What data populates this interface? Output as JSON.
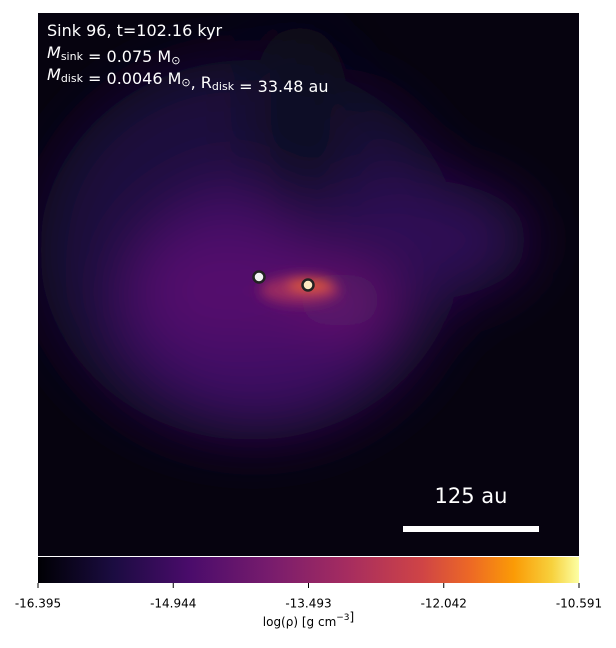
{
  "chart_data": {
    "type": "image",
    "annotations": [
      [
        {
          "text": "Sink 96, t=102.16 kyr"
        }
      ],
      [
        {
          "text": "M"
        },
        {
          "sub": "sink"
        },
        {
          "text": " = 0.075 M"
        },
        {
          "sub": "⊙"
        }
      ],
      [
        {
          "text": "M"
        },
        {
          "sub": "disk"
        },
        {
          "text": " = 0.0046 M"
        },
        {
          "sub": "⊙"
        },
        {
          "text": ", R"
        },
        {
          "sub": "disk"
        },
        {
          "text": " = 33.48 au"
        }
      ]
    ],
    "scale_bar": "125 au",
    "colorbar": {
      "label": [
        {
          "text": "log(ρ) [g cm"
        },
        {
          "sup": "−3"
        },
        {
          "text": "]"
        }
      ],
      "clim": [
        -16.395,
        -10.591
      ],
      "ticks": [
        -16.395,
        -14.944,
        -13.493,
        -12.042,
        -10.591
      ]
    }
  }
}
